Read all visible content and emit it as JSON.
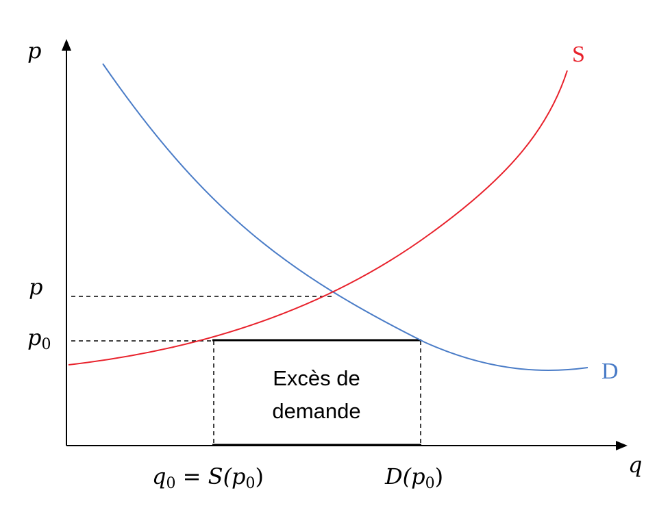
{
  "axes": {
    "y_label": "p",
    "x_label": "q"
  },
  "price_labels": {
    "equilibrium": "p",
    "p0_base": "p",
    "p0_sub": "0"
  },
  "curves": {
    "supply": {
      "label": "S",
      "color": "#e8212b"
    },
    "demand": {
      "label": "D",
      "color": "#4a7cc7"
    }
  },
  "box": {
    "line1": "Excès de",
    "line2": "demande"
  },
  "q_labels": {
    "q0_base": "q",
    "q0_sub": "0",
    "equals": " = ",
    "s_open": "S(p",
    "s_sub": "0",
    "close": ")",
    "d_open": "D(p",
    "d_sub": "0"
  }
}
